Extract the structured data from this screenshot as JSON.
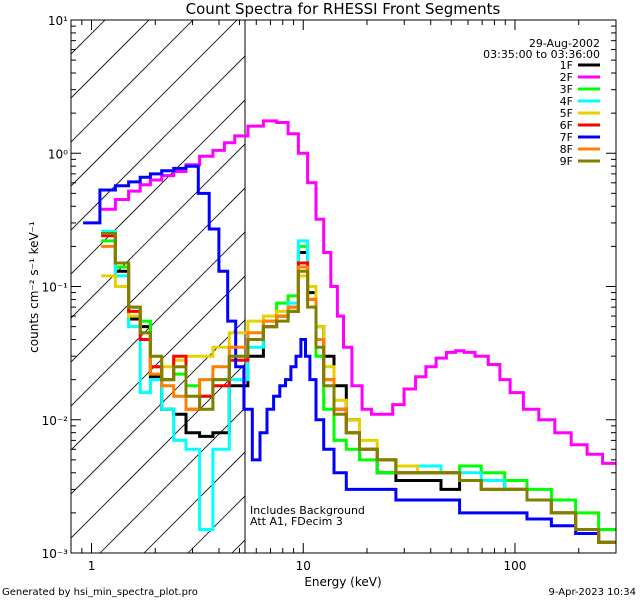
{
  "title": "Count Spectra for RHESSI Front Segments",
  "date_label": "29-Aug-2002",
  "time_range_label": "03:35:00 to 03:36:00",
  "ylabel": "counts cm⁻² s⁻¹ keV⁻¹",
  "footer_left": "Generated by hsi_min_spectra_plot.pro",
  "footer_right": "9-Apr-2023 10:34",
  "annotation_line1": "Includes Background",
  "annotation_line2": "Att A1, FDecim 3",
  "chart_data": {
    "type": "line",
    "title": "Count Spectra for RHESSI Front Segments",
    "xlabel": "Energy (keV)",
    "ylabel": "counts cm^-2 s^-1 keV^-1",
    "x_scale": "log",
    "y_scale": "log",
    "xlim": [
      0.8,
      300
    ],
    "ylim": [
      0.001,
      10
    ],
    "x_ticks": [
      1,
      10,
      100
    ],
    "x_tick_labels": [
      "1",
      "10",
      "100"
    ],
    "y_ticks": [
      0.001,
      0.01,
      0.1,
      1,
      10
    ],
    "y_tick_labels": [
      "10⁻³",
      "10⁻²",
      "10⁻¹",
      "10⁰",
      "10¹"
    ],
    "grid": false,
    "legend_position": "top-right",
    "hatched_region_upper_energy": 6,
    "series": [
      {
        "name": "1F",
        "color": "#000000",
        "x": [
          1.2,
          1.4,
          1.6,
          1.8,
          2.0,
          2.3,
          2.6,
          3.0,
          3.5,
          4.0,
          5.0,
          6.0,
          7.0,
          8.0,
          9.0,
          10.0,
          11.0,
          12.0,
          13.0,
          15.0,
          17.0,
          20.0,
          25.0,
          30.0,
          40.0,
          50.0,
          60.0,
          80.0,
          100.0,
          130.0,
          170.0,
          220.0,
          280.0
        ],
        "y": [
          0.25,
          0.13,
          0.057,
          0.05,
          0.021,
          0.012,
          0.011,
          0.008,
          0.0075,
          0.008,
          0.018,
          0.03,
          0.05,
          0.06,
          0.07,
          0.18,
          0.09,
          0.05,
          0.03,
          0.018,
          0.01,
          0.006,
          0.004,
          0.0035,
          0.0035,
          0.003,
          0.0035,
          0.0035,
          0.003,
          0.0025,
          0.002,
          0.0015,
          0.0012
        ]
      },
      {
        "name": "2F",
        "color": "#ff00ff",
        "x": [
          1.2,
          1.4,
          1.6,
          1.8,
          2.0,
          2.3,
          2.6,
          3.0,
          3.5,
          4.0,
          4.5,
          5.0,
          6.0,
          7.0,
          8.0,
          9.0,
          10.0,
          11.0,
          12.0,
          13.0,
          14.0,
          15.0,
          16.0,
          18.0,
          20.0,
          22.0,
          25.0,
          28.0,
          32.0,
          36.0,
          40.0,
          45.0,
          50.0,
          55.0,
          60.0,
          70.0,
          80.0,
          90.0,
          100.0,
          120.0,
          140.0,
          170.0,
          200.0,
          240.0,
          280.0
        ],
        "y": [
          0.38,
          0.45,
          0.52,
          0.58,
          0.63,
          0.68,
          0.73,
          0.82,
          0.95,
          1.05,
          1.2,
          1.35,
          1.6,
          1.75,
          1.7,
          1.4,
          1.0,
          0.6,
          0.32,
          0.18,
          0.1,
          0.06,
          0.035,
          0.018,
          0.012,
          0.011,
          0.011,
          0.013,
          0.017,
          0.021,
          0.025,
          0.029,
          0.032,
          0.033,
          0.032,
          0.03,
          0.026,
          0.02,
          0.016,
          0.012,
          0.01,
          0.008,
          0.0065,
          0.0055,
          0.0047
        ]
      },
      {
        "name": "3F",
        "color": "#00ff00",
        "x": [
          1.2,
          1.4,
          1.6,
          1.8,
          2.0,
          2.3,
          2.6,
          3.0,
          3.5,
          4.0,
          5.0,
          6.0,
          7.0,
          8.0,
          9.0,
          10.0,
          11.0,
          12.0,
          13.0,
          15.0,
          17.0,
          20.0,
          25.0,
          30.0,
          40.0,
          50.0,
          60.0,
          80.0,
          100.0,
          130.0,
          170.0,
          220.0,
          280.0
        ],
        "y": [
          0.22,
          0.14,
          0.07,
          0.055,
          0.025,
          0.02,
          0.022,
          0.018,
          0.015,
          0.02,
          0.03,
          0.04,
          0.055,
          0.075,
          0.085,
          0.2,
          0.1,
          0.03,
          0.012,
          0.007,
          0.006,
          0.005,
          0.004,
          0.0045,
          0.0045,
          0.004,
          0.0045,
          0.004,
          0.0035,
          0.003,
          0.0025,
          0.002,
          0.0015
        ]
      },
      {
        "name": "4F",
        "color": "#00ffff",
        "x": [
          1.2,
          1.4,
          1.6,
          1.8,
          2.0,
          2.3,
          2.6,
          3.0,
          3.5,
          4.0,
          5.0,
          6.0,
          7.0,
          8.0,
          9.0,
          10.0,
          11.0,
          12.0,
          13.0,
          15.0,
          17.0,
          20.0,
          25.0,
          30.0,
          40.0,
          50.0,
          60.0,
          80.0,
          100.0,
          130.0,
          170.0,
          220.0,
          280.0
        ],
        "y": [
          0.26,
          0.12,
          0.05,
          0.016,
          0.02,
          0.012,
          0.007,
          0.006,
          0.0015,
          0.006,
          0.02,
          0.035,
          0.05,
          0.06,
          0.075,
          0.22,
          0.1,
          0.04,
          0.02,
          0.012,
          0.008,
          0.006,
          0.005,
          0.004,
          0.0045,
          0.004,
          0.004,
          0.0035,
          0.003,
          0.0025,
          0.002,
          0.0015,
          0.0012
        ]
      },
      {
        "name": "5F",
        "color": "#e6d200",
        "x": [
          1.2,
          1.4,
          1.6,
          1.8,
          2.0,
          2.3,
          2.6,
          3.0,
          3.5,
          4.0,
          5.0,
          6.0,
          7.0,
          8.0,
          9.0,
          10.0,
          11.0,
          12.0,
          13.0,
          15.0,
          17.0,
          20.0,
          25.0,
          30.0,
          40.0,
          50.0,
          60.0,
          80.0,
          100.0,
          130.0,
          170.0,
          220.0,
          280.0
        ],
        "y": [
          0.12,
          0.1,
          0.06,
          0.045,
          0.03,
          0.025,
          0.028,
          0.03,
          0.03,
          0.035,
          0.045,
          0.055,
          0.06,
          0.065,
          0.07,
          0.12,
          0.1,
          0.05,
          0.025,
          0.014,
          0.01,
          0.007,
          0.005,
          0.0045,
          0.004,
          0.004,
          0.0035,
          0.003,
          0.003,
          0.0025,
          0.002,
          0.0015,
          0.0012
        ]
      },
      {
        "name": "6F",
        "color": "#ff0000",
        "x": [
          1.2,
          1.4,
          1.6,
          1.8,
          2.0,
          2.3,
          2.6,
          3.0,
          3.5,
          4.0,
          5.0,
          6.0,
          7.0,
          8.0,
          9.0,
          10.0,
          11.0,
          12.0,
          13.0,
          15.0,
          17.0,
          20.0,
          25.0,
          30.0,
          40.0,
          50.0,
          60.0,
          80.0,
          100.0,
          130.0,
          170.0,
          220.0,
          280.0
        ],
        "y": [
          0.24,
          0.15,
          0.065,
          0.04,
          0.025,
          0.02,
          0.03,
          0.012,
          0.015,
          0.018,
          0.028,
          0.04,
          0.05,
          0.06,
          0.065,
          0.15,
          0.08,
          0.04,
          0.02,
          0.012,
          0.008,
          0.006,
          0.005,
          0.004,
          0.004,
          0.004,
          0.0035,
          0.003,
          0.003,
          0.0025,
          0.002,
          0.0015,
          0.0012
        ]
      },
      {
        "name": "7F",
        "color": "#0000ff",
        "x": [
          1.0,
          1.2,
          1.4,
          1.6,
          1.8,
          2.0,
          2.3,
          2.6,
          3.0,
          3.4,
          3.8,
          4.2,
          4.6,
          5.0,
          5.5,
          6.0,
          6.5,
          7.0,
          7.5,
          8.0,
          8.5,
          9.0,
          9.5,
          10.0,
          10.5,
          11.0,
          12.0,
          13.0,
          15.0,
          17.0,
          20.0,
          25.0,
          30.0,
          40.0,
          50.0,
          60.0,
          80.0,
          100.0,
          130.0,
          170.0,
          220.0,
          280.0
        ],
        "y": [
          0.3,
          0.53,
          0.57,
          0.61,
          0.66,
          0.7,
          0.74,
          0.77,
          0.8,
          0.5,
          0.27,
          0.13,
          0.055,
          0.025,
          0.012,
          0.005,
          0.008,
          0.012,
          0.015,
          0.018,
          0.02,
          0.025,
          0.03,
          0.04,
          0.03,
          0.02,
          0.01,
          0.006,
          0.004,
          0.003,
          0.003,
          0.003,
          0.0025,
          0.0025,
          0.0025,
          0.002,
          0.002,
          0.002,
          0.0018,
          0.0016,
          0.0014,
          0.0012
        ]
      },
      {
        "name": "8F",
        "color": "#ff8000",
        "x": [
          1.2,
          1.4,
          1.6,
          1.8,
          2.0,
          2.3,
          2.6,
          3.0,
          3.5,
          4.0,
          5.0,
          6.0,
          7.0,
          8.0,
          9.0,
          10.0,
          11.0,
          12.0,
          13.0,
          15.0,
          17.0,
          20.0,
          25.0,
          30.0,
          40.0,
          50.0,
          60.0,
          80.0,
          100.0,
          130.0,
          170.0,
          220.0,
          280.0
        ],
        "y": [
          0.2,
          0.15,
          0.07,
          0.045,
          0.022,
          0.018,
          0.015,
          0.012,
          0.02,
          0.025,
          0.035,
          0.045,
          0.055,
          0.06,
          0.07,
          0.14,
          0.08,
          0.04,
          0.02,
          0.012,
          0.008,
          0.006,
          0.005,
          0.004,
          0.004,
          0.004,
          0.0035,
          0.003,
          0.003,
          0.0025,
          0.002,
          0.0015,
          0.0012
        ]
      },
      {
        "name": "9F",
        "color": "#808000",
        "x": [
          1.2,
          1.4,
          1.6,
          1.8,
          2.0,
          2.3,
          2.6,
          3.0,
          3.5,
          4.0,
          5.0,
          6.0,
          7.0,
          8.0,
          9.0,
          10.0,
          11.0,
          12.0,
          13.0,
          15.0,
          17.0,
          20.0,
          25.0,
          30.0,
          40.0,
          50.0,
          60.0,
          80.0,
          100.0,
          130.0,
          170.0,
          220.0,
          280.0
        ],
        "y": [
          0.25,
          0.15,
          0.07,
          0.045,
          0.03,
          0.02,
          0.025,
          0.015,
          0.012,
          0.02,
          0.03,
          0.04,
          0.05,
          0.055,
          0.065,
          0.13,
          0.07,
          0.035,
          0.018,
          0.011,
          0.008,
          0.006,
          0.005,
          0.004,
          0.004,
          0.004,
          0.0035,
          0.003,
          0.003,
          0.0025,
          0.002,
          0.0015,
          0.0012
        ]
      }
    ]
  }
}
